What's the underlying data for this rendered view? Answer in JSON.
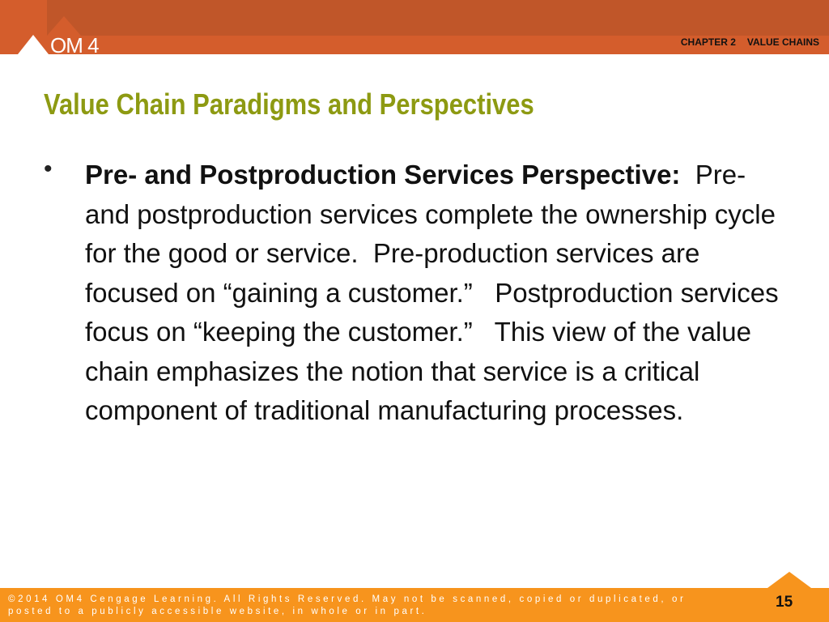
{
  "header": {
    "logo": "OM 4",
    "chapter": "CHAPTER 2",
    "chapter_title": "VALUE CHAINS"
  },
  "slide": {
    "title": "Value Chain Paradigms and Perspectives",
    "bullet": "•",
    "bold_lead": "Pre- and Postproduction Services Perspective:",
    "text": "  Pre- and postproduction services complete the ownership cycle for the good or service.  Pre-production services are focused on “gaining a customer.”   Postproduction services focus on “keeping the customer.”   This view of the value chain emphasizes the notion that service is a critical component of traditional manufacturing processes."
  },
  "footer": {
    "copyright": "©2014  OM4 Cengage Learning. All Rights Reserved.  May not be scanned, copied or duplicated, or posted to a publicly accessible website, in whole or in part.",
    "page_number": "15"
  },
  "colors": {
    "header": "#c05629",
    "header_light": "#d45d2c",
    "title": "#8d9a12",
    "footer": "#f7941d"
  }
}
